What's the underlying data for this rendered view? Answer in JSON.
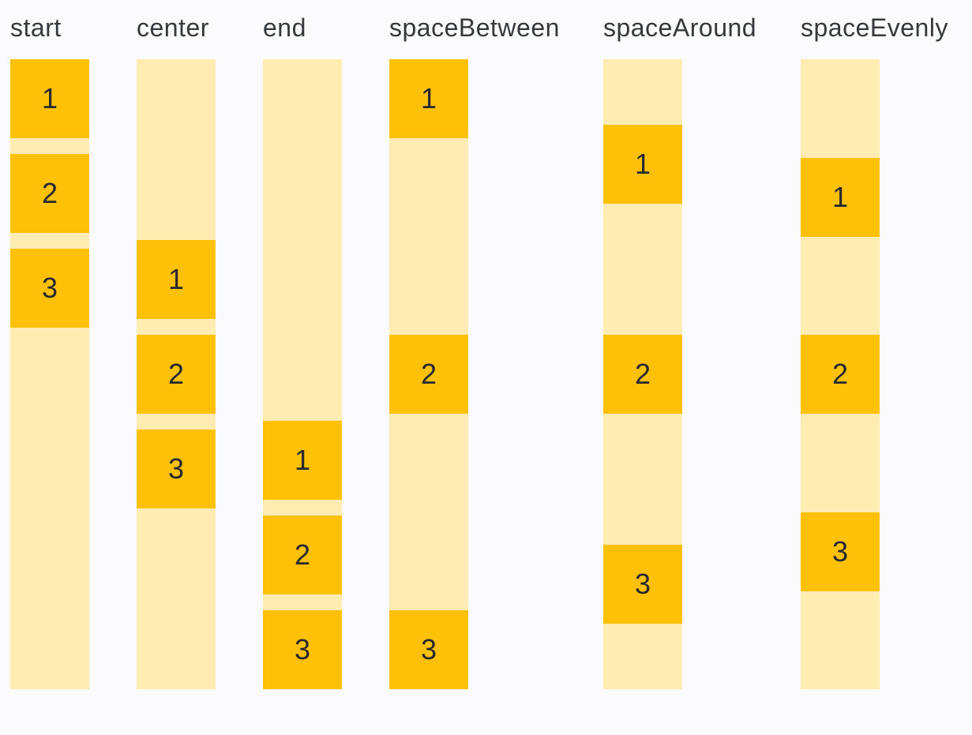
{
  "palette": {
    "bg": "#fbfbfe",
    "track": "#ffecb3",
    "box": "#ffc107",
    "label_text": "#35383d",
    "digit_text": "#27292c"
  },
  "columns": [
    {
      "label": "start",
      "justify": "start",
      "items": [
        "1",
        "2",
        "3"
      ]
    },
    {
      "label": "center",
      "justify": "center",
      "items": [
        "1",
        "2",
        "3"
      ]
    },
    {
      "label": "end",
      "justify": "end",
      "items": [
        "1",
        "2",
        "3"
      ]
    },
    {
      "label": "spaceBetween",
      "justify": "spaceBetween",
      "items": [
        "1",
        "2",
        "3"
      ]
    },
    {
      "label": "spaceAround",
      "justify": "spaceAround",
      "items": [
        "1",
        "2",
        "3"
      ]
    },
    {
      "label": "spaceEvenly",
      "justify": "spaceEvenly",
      "items": [
        "1",
        "2",
        "3"
      ]
    }
  ]
}
